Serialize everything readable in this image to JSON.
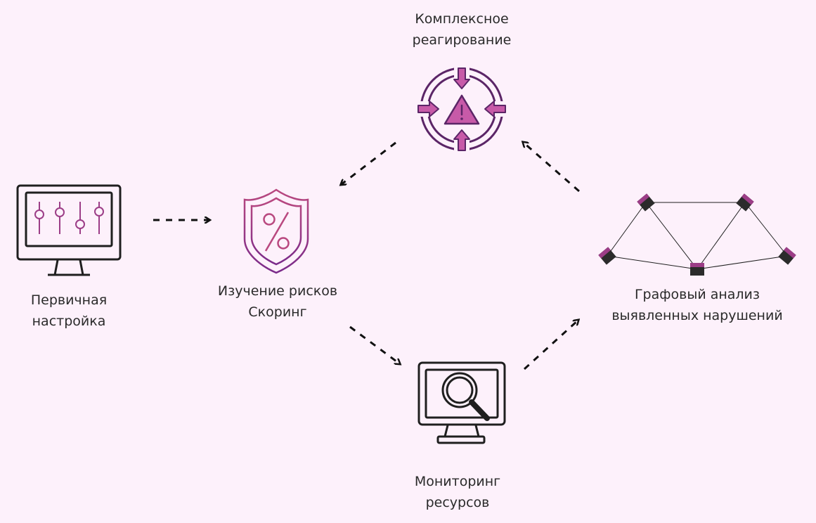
{
  "colors": {
    "background": "#fdf1fb",
    "accent": "#9c3d87",
    "accent_dark": "#5b2567",
    "accent_light": "#c75aa8",
    "ink": "#1f1f1f"
  },
  "nodes": {
    "setup": {
      "line1": "Первичная",
      "line2": "настройка",
      "icon": "monitor-sliders-icon"
    },
    "risk": {
      "line1": "Изучение рисков",
      "line2": "Скоринг",
      "icon": "shield-percent-icon"
    },
    "response": {
      "line1": "Комплексное",
      "line2": "реагирование",
      "icon": "target-alert-icon"
    },
    "graph": {
      "line1": "Графовый анализ",
      "line2": "выявленных нарушений",
      "icon": "graph-network-icon"
    },
    "monitoring": {
      "line1": "Мониторинг",
      "line2": "ресурсов",
      "icon": "monitor-search-icon"
    }
  }
}
